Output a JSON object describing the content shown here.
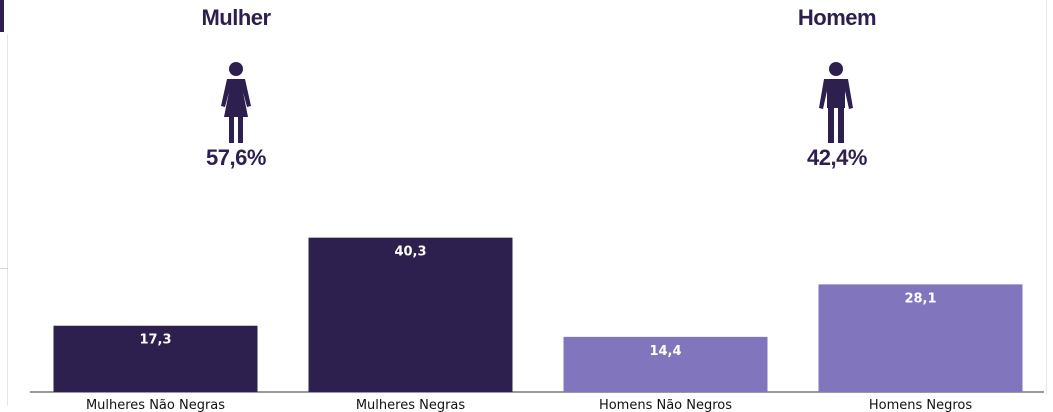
{
  "gender": {
    "female": {
      "title": "Mulher",
      "share": "57,6%",
      "icon": "woman-icon"
    },
    "male": {
      "title": "Homem",
      "share": "42,4%",
      "icon": "man-icon"
    }
  },
  "colors": {
    "dark": "#2d1f4e",
    "light": "#8175bd"
  },
  "chart_data": {
    "type": "bar",
    "categories": [
      "Mulheres Não Negras",
      "Mulheres Negras",
      "Homens Não Negros",
      "Homens Negros"
    ],
    "values": [
      17.3,
      40.3,
      14.4,
      28.1
    ],
    "value_labels": [
      "17,3",
      "40,3",
      "14,4",
      "28,1"
    ],
    "bar_colors": [
      "#2d1f4e",
      "#2d1f4e",
      "#8175bd",
      "#8175bd"
    ],
    "title": "",
    "xlabel": "",
    "ylabel": "",
    "grid": false
  }
}
